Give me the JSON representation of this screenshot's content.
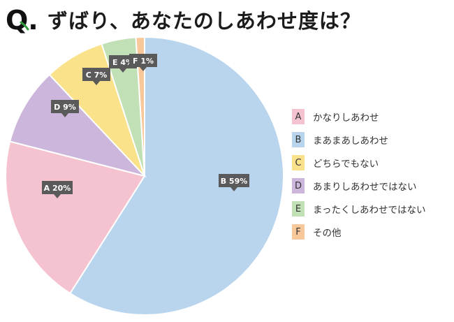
{
  "title": "ずばり、あなたのしあわせ度は？",
  "q_mark": "Q.",
  "chart_data": {
    "type": "pie",
    "title": "ずばり、あなたのしあわせ度は？",
    "unit": "%",
    "start_angle_deg": 0,
    "direction": "clockwise",
    "legend_position": "right",
    "slices": [
      {
        "key": "B",
        "label": "まあまあしあわせ",
        "value": 59,
        "tag": "B 59%",
        "color": "#b9d5ee"
      },
      {
        "key": "A",
        "label": "かなりしあわせ",
        "value": 20,
        "tag": "A 20%",
        "color": "#f4c3cf"
      },
      {
        "key": "D",
        "label": "あまりしあわせではない",
        "value": 9,
        "tag": "D 9%",
        "color": "#ccb6db"
      },
      {
        "key": "C",
        "label": "どちらでもない",
        "value": 7,
        "tag": "C 7%",
        "color": "#fae28a"
      },
      {
        "key": "E",
        "label": "まったくしあわせではない",
        "value": 4,
        "tag": "E 4%",
        "color": "#c2e0b6"
      },
      {
        "key": "F",
        "label": "その他",
        "value": 1,
        "tag": "F 1%",
        "color": "#f8c89a"
      }
    ],
    "legend": [
      {
        "key": "A",
        "label": "かなりしあわせ",
        "color": "#f4c3cf"
      },
      {
        "key": "B",
        "label": "まあまあしあわせ",
        "color": "#b9d5ee"
      },
      {
        "key": "C",
        "label": "どちらでもない",
        "color": "#fae28a"
      },
      {
        "key": "D",
        "label": "あまりしあわせではない",
        "color": "#ccb6db"
      },
      {
        "key": "E",
        "label": "まったくしあわせではない",
        "color": "#c2e0b6"
      },
      {
        "key": "F",
        "label": "その他",
        "color": "#f8c89a"
      }
    ]
  },
  "colors": {
    "tag_bg": "#5a5a5a",
    "slice_border": "#ffffff"
  }
}
